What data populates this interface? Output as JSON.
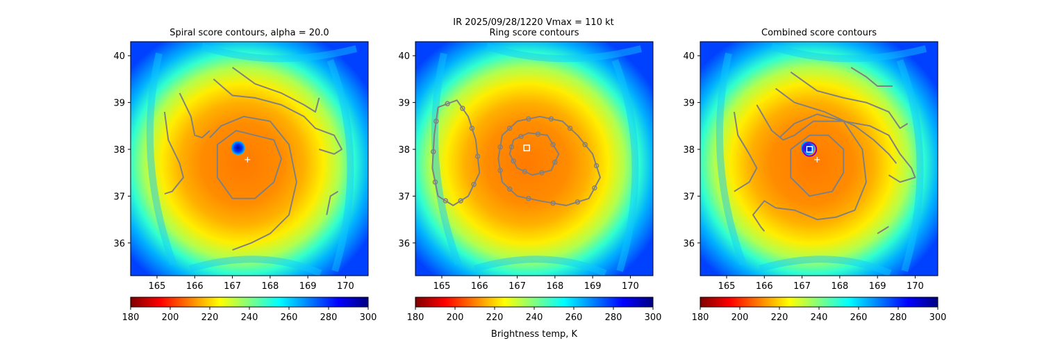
{
  "suptitle_line": "IR  2025/09/28/1220    Vmax = 110 kt",
  "colorbar_label": "Brightness temp, K",
  "colormap": {
    "name": "jet_r",
    "stops": [
      "#800000",
      "#ff0000",
      "#ff8000",
      "#ffff00",
      "#80ff80",
      "#00ffff",
      "#0080ff",
      "#0000ff",
      "#000080"
    ]
  },
  "chart_data": [
    {
      "type": "heatmap",
      "panel": "spiral",
      "title": "Spiral score contours, alpha = 20.0",
      "xlabel": "",
      "ylabel": "",
      "xlim": [
        164.3,
        170.6
      ],
      "ylim": [
        35.3,
        40.3
      ],
      "xticks": [
        165,
        166,
        167,
        168,
        169,
        170
      ],
      "yticks": [
        36,
        37,
        38,
        39,
        40
      ],
      "value_range": [
        180,
        300
      ],
      "colorbar_ticks": [
        180,
        200,
        220,
        240,
        260,
        280,
        300
      ],
      "eye_center": [
        167.15,
        38.03
      ],
      "best_track_marker": [
        167.4,
        37.78
      ],
      "center_box": null,
      "contours": [
        {
          "name": "inner-loop",
          "points": [
            [
              167.6,
              38.3
            ],
            [
              167.1,
              38.4
            ],
            [
              166.6,
              38.1
            ],
            [
              166.6,
              37.4
            ],
            [
              167.0,
              36.95
            ],
            [
              167.6,
              36.95
            ],
            [
              168.1,
              37.3
            ],
            [
              168.3,
              37.8
            ],
            [
              168.1,
              38.2
            ],
            [
              167.6,
              38.3
            ]
          ]
        },
        {
          "name": "outer-arc",
          "points": [
            [
              166.4,
              38.25
            ],
            [
              166.7,
              38.5
            ],
            [
              167.3,
              38.7
            ],
            [
              168.0,
              38.6
            ],
            [
              168.5,
              38.1
            ],
            [
              168.7,
              37.3
            ],
            [
              168.5,
              36.6
            ],
            [
              168.0,
              36.2
            ],
            [
              167.5,
              36.0
            ],
            [
              167.0,
              35.85
            ]
          ]
        },
        {
          "name": "north-band",
          "points": [
            [
              166.5,
              39.5
            ],
            [
              167.0,
              39.15
            ],
            [
              167.6,
              39.1
            ],
            [
              168.3,
              38.95
            ],
            [
              168.9,
              38.7
            ],
            [
              169.2,
              38.45
            ],
            [
              169.7,
              38.3
            ],
            [
              169.9,
              38.0
            ],
            [
              169.7,
              37.9
            ],
            [
              169.3,
              38.0
            ]
          ]
        },
        {
          "name": "top-band",
          "points": [
            [
              167.0,
              39.75
            ],
            [
              167.6,
              39.4
            ],
            [
              168.3,
              39.2
            ],
            [
              168.9,
              38.95
            ],
            [
              169.2,
              38.8
            ],
            [
              169.3,
              39.1
            ]
          ]
        },
        {
          "name": "west-arc",
          "points": [
            [
              165.6,
              39.2
            ],
            [
              165.9,
              38.7
            ],
            [
              166.0,
              38.3
            ],
            [
              166.2,
              38.25
            ],
            [
              166.4,
              38.4
            ]
          ]
        },
        {
          "name": "far-west-band",
          "points": [
            [
              165.2,
              38.8
            ],
            [
              165.3,
              38.2
            ],
            [
              165.6,
              37.7
            ],
            [
              165.7,
              37.4
            ],
            [
              165.4,
              37.1
            ],
            [
              165.2,
              37.05
            ]
          ]
        },
        {
          "name": "east-tail",
          "points": [
            [
              169.8,
              37.1
            ],
            [
              169.6,
              37.0
            ],
            [
              169.5,
              36.6
            ]
          ]
        }
      ],
      "rings": []
    },
    {
      "type": "heatmap",
      "panel": "ring",
      "title": "Ring score contours",
      "xlabel": "",
      "ylabel": "",
      "xlim": [
        164.3,
        170.6
      ],
      "ylim": [
        35.3,
        40.3
      ],
      "xticks": [
        165,
        166,
        167,
        168,
        169,
        170
      ],
      "yticks": [
        36,
        37,
        38,
        39,
        40
      ],
      "value_range": [
        180,
        300
      ],
      "colorbar_ticks": [
        180,
        200,
        220,
        240,
        260,
        280,
        300
      ],
      "eye_center": null,
      "best_track_marker": null,
      "center_box": [
        167.25,
        38.03
      ],
      "contours": [
        {
          "name": "west-patch",
          "points": [
            [
              164.9,
              38.9
            ],
            [
              165.4,
              39.05
            ],
            [
              165.7,
              38.7
            ],
            [
              165.9,
              38.2
            ],
            [
              166.0,
              37.5
            ],
            [
              165.7,
              37.0
            ],
            [
              165.3,
              36.8
            ],
            [
              164.9,
              37.0
            ],
            [
              164.75,
              37.6
            ],
            [
              164.8,
              38.3
            ],
            [
              164.9,
              38.9
            ]
          ]
        },
        {
          "name": "core-blob",
          "points": [
            [
              166.6,
              38.3
            ],
            [
              167.0,
              38.6
            ],
            [
              167.6,
              38.7
            ],
            [
              168.2,
              38.6
            ],
            [
              168.6,
              38.3
            ],
            [
              169.0,
              37.9
            ],
            [
              169.2,
              37.4
            ],
            [
              168.9,
              36.95
            ],
            [
              168.3,
              36.8
            ],
            [
              167.6,
              36.9
            ],
            [
              167.0,
              37.0
            ],
            [
              166.6,
              37.3
            ],
            [
              166.5,
              37.8
            ],
            [
              166.6,
              38.3
            ]
          ]
        },
        {
          "name": "core-inner",
          "points": [
            [
              166.9,
              38.2
            ],
            [
              167.3,
              38.35
            ],
            [
              167.8,
              38.3
            ],
            [
              168.1,
              37.9
            ],
            [
              167.9,
              37.55
            ],
            [
              167.4,
              37.45
            ],
            [
              167.0,
              37.6
            ],
            [
              166.8,
              37.9
            ],
            [
              166.9,
              38.2
            ]
          ]
        }
      ],
      "rings": []
    },
    {
      "type": "heatmap",
      "panel": "combined",
      "title": "Combined score contours",
      "xlabel": "",
      "ylabel": "",
      "xlim": [
        164.3,
        170.6
      ],
      "ylim": [
        35.3,
        40.3
      ],
      "xticks": [
        165,
        166,
        167,
        168,
        169,
        170
      ],
      "yticks": [
        36,
        37,
        38,
        39,
        40
      ],
      "value_range": [
        180,
        300
      ],
      "colorbar_ticks": [
        180,
        200,
        220,
        240,
        260,
        280,
        300
      ],
      "eye_center": [
        167.15,
        38.03
      ],
      "best_track_marker": [
        167.4,
        37.78
      ],
      "center_box": [
        167.2,
        38.0
      ],
      "contours": [
        {
          "name": "inner-loop",
          "points": [
            [
              167.2,
              38.3
            ],
            [
              166.7,
              38.0
            ],
            [
              166.7,
              37.4
            ],
            [
              167.2,
              37.0
            ],
            [
              167.8,
              37.1
            ],
            [
              168.1,
              37.5
            ],
            [
              168.1,
              38.0
            ],
            [
              167.7,
              38.3
            ],
            [
              167.2,
              38.3
            ]
          ]
        },
        {
          "name": "outer-arc",
          "points": [
            [
              166.4,
              38.25
            ],
            [
              166.8,
              38.55
            ],
            [
              167.4,
              38.75
            ],
            [
              168.1,
              38.6
            ],
            [
              168.6,
              38.0
            ],
            [
              168.7,
              37.3
            ],
            [
              168.4,
              36.7
            ],
            [
              167.9,
              36.55
            ],
            [
              167.4,
              36.5
            ],
            [
              166.8,
              36.7
            ],
            [
              166.3,
              36.75
            ],
            [
              166.0,
              36.9
            ],
            [
              165.7,
              36.6
            ],
            [
              165.9,
              36.35
            ],
            [
              166.0,
              36.25
            ]
          ]
        },
        {
          "name": "north-band",
          "points": [
            [
              165.8,
              38.95
            ],
            [
              166.2,
              38.4
            ],
            [
              166.5,
              38.2
            ],
            [
              166.8,
              38.3
            ],
            [
              167.3,
              38.6
            ],
            [
              168.1,
              38.6
            ],
            [
              168.8,
              38.5
            ],
            [
              169.3,
              38.3
            ],
            [
              169.6,
              37.9
            ],
            [
              169.9,
              37.6
            ],
            [
              170.0,
              37.4
            ],
            [
              169.6,
              37.3
            ],
            [
              169.3,
              37.45
            ]
          ]
        },
        {
          "name": "top-band",
          "points": [
            [
              166.7,
              39.65
            ],
            [
              167.4,
              39.25
            ],
            [
              168.1,
              39.1
            ],
            [
              168.7,
              39.0
            ],
            [
              169.3,
              38.8
            ],
            [
              169.6,
              38.45
            ],
            [
              169.8,
              38.55
            ]
          ]
        },
        {
          "name": "top-right-band",
          "points": [
            [
              168.3,
              39.75
            ],
            [
              168.7,
              39.55
            ],
            [
              169.0,
              39.35
            ],
            [
              169.3,
              39.35
            ],
            [
              169.4,
              39.35
            ]
          ]
        },
        {
          "name": "mid-band",
          "points": [
            [
              166.3,
              39.3
            ],
            [
              166.8,
              39.0
            ],
            [
              167.6,
              38.8
            ],
            [
              168.4,
              38.5
            ],
            [
              168.9,
              38.2
            ],
            [
              169.3,
              37.9
            ],
            [
              169.5,
              37.7
            ]
          ]
        },
        {
          "name": "far-west-band",
          "points": [
            [
              165.2,
              38.8
            ],
            [
              165.3,
              38.3
            ],
            [
              165.6,
              37.9
            ],
            [
              165.8,
              37.6
            ],
            [
              165.6,
              37.3
            ],
            [
              165.3,
              37.15
            ],
            [
              165.2,
              37.1
            ]
          ]
        },
        {
          "name": "south-tail",
          "points": [
            [
              169.0,
              36.2
            ],
            [
              169.2,
              36.3
            ],
            [
              169.3,
              36.35
            ]
          ]
        }
      ],
      "rings": [
        {
          "name": "eye-ring",
          "center": [
            167.2,
            38.0
          ],
          "radius_deg": 0.18
        }
      ]
    }
  ]
}
